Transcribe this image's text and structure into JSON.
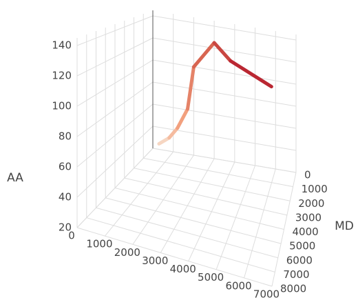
{
  "chart_data": {
    "type": "line3d",
    "x": [
      300,
      800,
      1200,
      1700,
      2000,
      3000,
      3800,
      5800
    ],
    "y": [
      0,
      0,
      0,
      0,
      0,
      0,
      0,
      0
    ],
    "z": [
      25,
      32,
      42,
      61,
      100,
      125,
      111,
      94
    ],
    "colorscale": [
      "#f6e3d3",
      "#f4a582",
      "#d6604d",
      "#b2182b"
    ],
    "xlim": [
      0,
      7000
    ],
    "xticks": [
      0,
      1000,
      2000,
      3000,
      4000,
      5000,
      6000,
      7000
    ],
    "ylim": [
      0,
      8000
    ],
    "yticks": [
      0,
      1000,
      2000,
      3000,
      4000,
      5000,
      6000,
      7000,
      8000
    ],
    "zlim": [
      20,
      145
    ],
    "zticks": [
      20,
      40,
      60,
      80,
      100,
      120,
      140
    ],
    "ylabel": "MD",
    "zlabel": "AA",
    "grid": true
  }
}
